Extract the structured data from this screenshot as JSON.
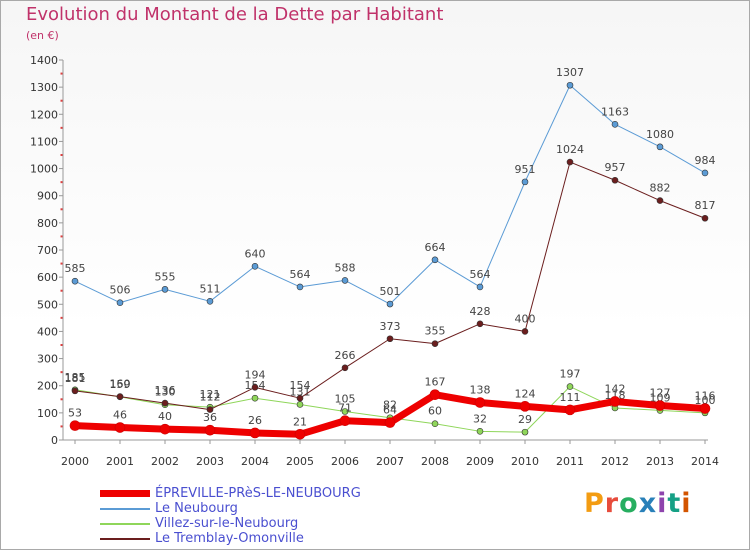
{
  "title": "Evolution du Montant de la Dette par Habitant",
  "subtitle": "(en €)",
  "logo": "Proxiti",
  "chart_data": {
    "type": "line",
    "title": "Evolution du Montant de la Dette par Habitant",
    "ylabel": "(en €)",
    "xlabel": "",
    "x": [
      "2000",
      "2001",
      "2002",
      "2003",
      "2004",
      "2005",
      "2006",
      "2007",
      "2008",
      "2009",
      "2010",
      "2011",
      "2012",
      "2013",
      "2014"
    ],
    "ylim": [
      0,
      1400
    ],
    "yticks": [
      0,
      100,
      200,
      300,
      400,
      500,
      600,
      700,
      800,
      900,
      1000,
      1100,
      1200,
      1300,
      1400
    ],
    "grid": false,
    "legend_position": "bottom-left",
    "series": [
      {
        "name": "ÉPREVILLE-PRèS-LE-NEUBOURG",
        "color": "#ee0000",
        "values": [
          53,
          46,
          40,
          36,
          26,
          21,
          71,
          64,
          167,
          138,
          124,
          111,
          142,
          127,
          116
        ]
      },
      {
        "name": "Le Neubourg",
        "color": "#5b9bd5",
        "values": [
          585,
          506,
          555,
          511,
          640,
          564,
          588,
          501,
          664,
          564,
          951,
          1307,
          1163,
          1080,
          984
        ]
      },
      {
        "name": "Villez-sur-le-Neubourg",
        "color": "#8fd65a",
        "values": [
          185,
          159,
          130,
          121,
          154,
          131,
          105,
          82,
          60,
          32,
          29,
          197,
          118,
          109,
          100
        ]
      },
      {
        "name": "Le Tremblay-Omonville",
        "color": "#6b1e1e",
        "values": [
          181,
          160,
          136,
          112,
          194,
          154,
          266,
          373,
          355,
          428,
          400,
          1024,
          957,
          882,
          817
        ]
      }
    ]
  }
}
